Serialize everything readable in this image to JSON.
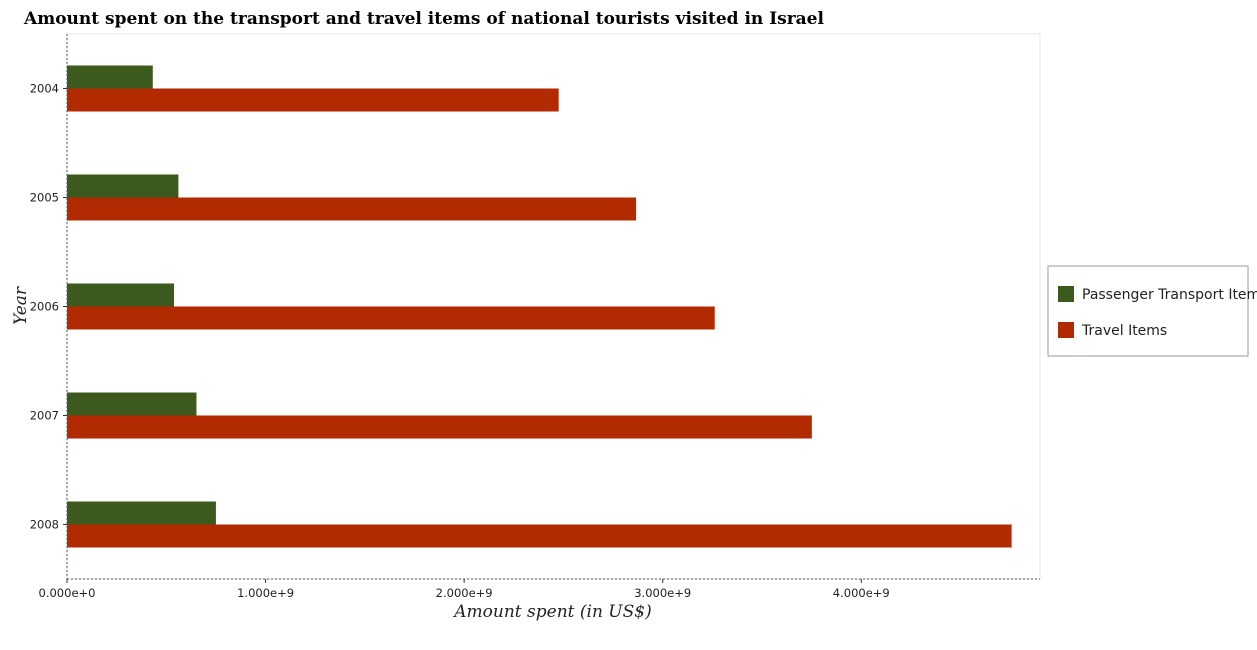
{
  "chart_data": {
    "type": "bar",
    "orientation": "horizontal",
    "title": "Amount spent on the transport and travel items of national tourists visited in Israel",
    "xlabel": "Amount spent (in US$)",
    "ylabel": "Year",
    "categories": [
      "2004",
      "2005",
      "2006",
      "2007",
      "2008"
    ],
    "series": [
      {
        "name": "Passenger Transport Items",
        "color": "#3d5a1e",
        "values": [
          432000000,
          561000000,
          539000000,
          652000000,
          750000000
        ]
      },
      {
        "name": "Travel Items",
        "color": "#b22a00",
        "values": [
          2476000000,
          2866000000,
          3262000000,
          3751000000,
          4757000000
        ]
      }
    ],
    "xlim": [
      0,
      4900000000
    ],
    "xticks": [
      0,
      1000000000,
      2000000000,
      3000000000,
      4000000000
    ],
    "xtick_labels": [
      "0.000e+0",
      "1.000e+9",
      "2.000e+9",
      "3.000e+9",
      "4.000e+9"
    ],
    "legend_position": "right",
    "grid": false
  }
}
